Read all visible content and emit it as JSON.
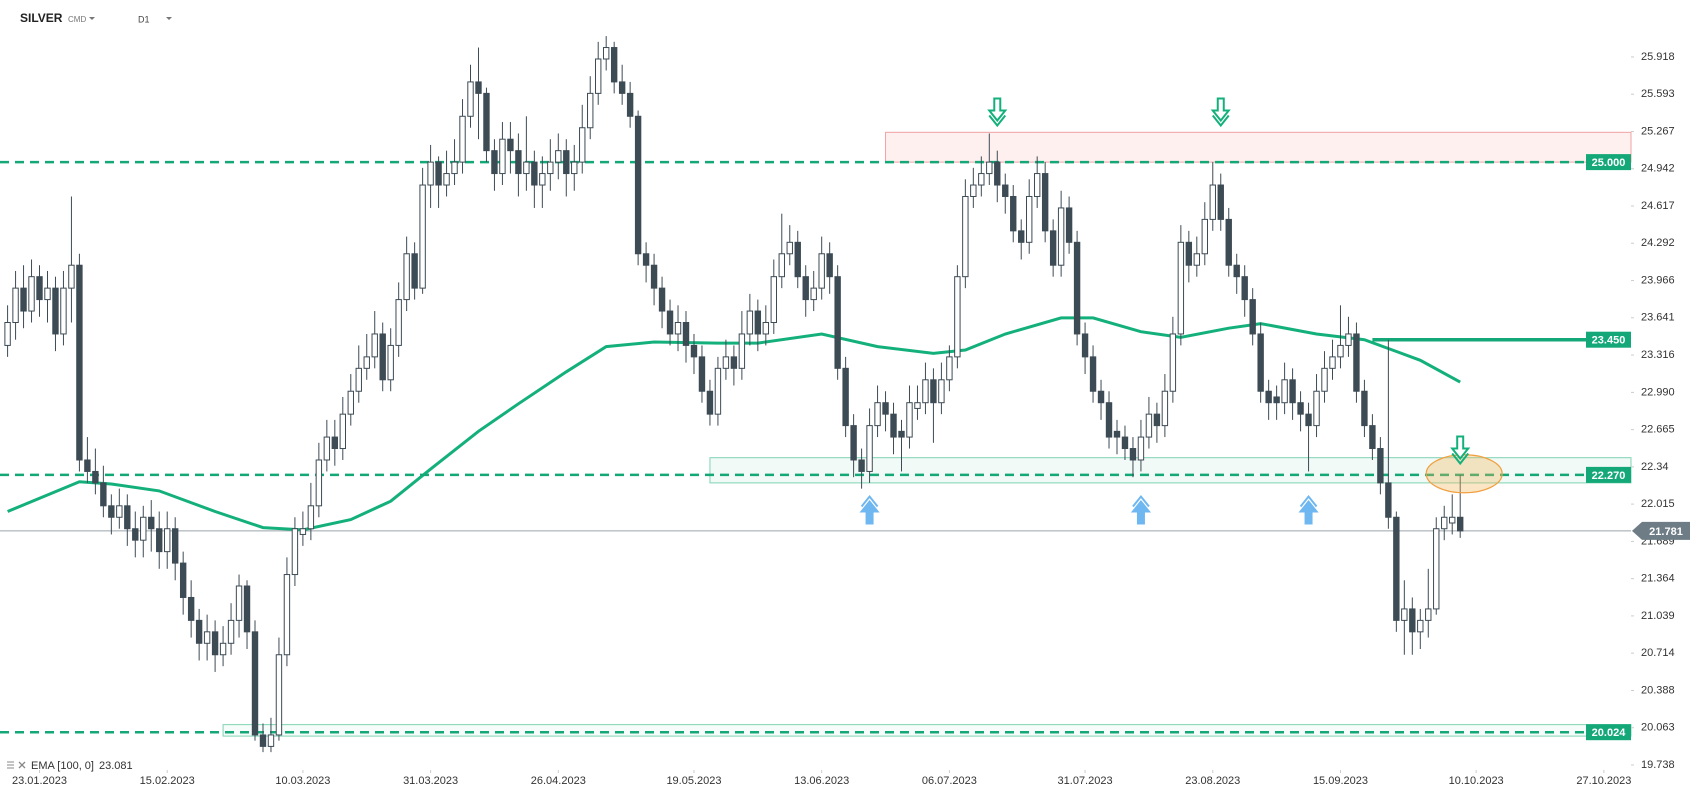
{
  "header": {
    "symbol": "SILVER",
    "market": "CMD",
    "interval": "D1"
  },
  "chart_data": {
    "type": "candlestick",
    "colors": {
      "up": "#ffffff",
      "down": "#3d4b55",
      "outline": "#3d4b55"
    },
    "open": [
      23.4,
      23.6,
      23.9,
      23.7,
      24.0,
      23.8,
      23.9,
      23.5,
      23.9,
      24.1,
      22.4,
      22.3,
      22.2,
      22.0,
      21.9,
      22.0,
      21.8,
      21.7,
      21.9,
      21.8,
      21.6,
      21.8,
      21.5,
      21.2,
      21.0,
      20.8,
      20.9,
      20.7,
      20.8,
      21.0,
      21.3,
      20.9,
      20.0,
      19.9,
      20.0,
      20.7,
      21.4,
      21.75,
      21.8,
      22.0,
      22.4,
      22.6,
      22.5,
      22.8,
      23.0,
      23.2,
      23.3,
      23.5,
      23.1,
      23.4,
      23.8,
      24.2,
      23.9,
      24.8,
      25.0,
      24.8,
      24.9,
      25.0,
      25.4,
      25.7,
      25.6,
      25.1,
      24.9,
      25.2,
      25.1,
      24.9,
      25.0,
      24.8,
      24.9,
      25.0,
      25.1,
      24.9,
      25.0,
      25.3,
      25.6,
      25.9,
      26.0,
      25.7,
      25.6,
      25.4,
      24.2,
      24.1,
      23.9,
      23.7,
      23.5,
      23.6,
      23.4,
      23.3,
      23.0,
      22.8,
      23.2,
      23.3,
      23.2,
      23.5,
      23.7,
      23.5,
      23.6,
      24.0,
      24.2,
      24.3,
      24.0,
      23.8,
      23.9,
      24.2,
      24.0,
      23.2,
      22.7,
      22.4,
      22.3,
      22.7,
      22.9,
      22.8,
      22.65,
      22.6,
      22.85,
      22.9,
      23.1,
      22.9,
      23.1,
      23.3,
      24.0,
      24.7,
      24.8,
      24.9,
      25.0,
      24.8,
      24.7,
      24.4,
      24.3,
      24.7,
      24.9,
      24.4,
      24.1,
      24.6,
      24.3,
      23.5,
      23.3,
      23.0,
      22.9,
      22.65,
      22.6,
      22.5,
      22.4,
      22.6,
      22.8,
      22.7,
      23.0,
      23.5,
      24.3,
      24.1,
      24.2,
      24.5,
      24.8,
      24.5,
      24.1,
      24.0,
      23.8,
      23.5,
      23.0,
      22.95,
      22.9,
      23.1,
      22.9,
      22.8,
      22.7,
      23.0,
      23.2,
      23.3,
      23.4,
      23.5,
      23.0,
      22.7,
      22.5,
      22.2,
      21.9,
      21.0,
      21.1,
      20.9,
      21.0,
      21.1,
      21.8,
      21.85,
      21.9
    ],
    "high": [
      23.75,
      24.05,
      24.1,
      24.15,
      24.1,
      24.05,
      24.0,
      24.05,
      24.7,
      24.2,
      22.6,
      22.5,
      22.35,
      22.1,
      22.15,
      22.1,
      21.95,
      22.0,
      22.05,
      21.95,
      21.95,
      21.9,
      21.6,
      21.35,
      21.1,
      21.05,
      21.0,
      20.95,
      21.15,
      21.4,
      21.35,
      21.0,
      20.1,
      20.15,
      20.85,
      21.55,
      21.9,
      21.95,
      22.2,
      22.55,
      22.75,
      22.75,
      22.95,
      23.15,
      23.4,
      23.5,
      23.7,
      23.6,
      23.55,
      23.95,
      24.35,
      24.3,
      24.95,
      25.15,
      25.05,
      25.1,
      25.2,
      25.55,
      25.85,
      26.0,
      25.65,
      25.2,
      25.35,
      25.35,
      25.25,
      25.4,
      25.1,
      25.05,
      25.2,
      25.25,
      25.2,
      25.15,
      25.5,
      25.75,
      26.05,
      26.1,
      26.05,
      25.85,
      25.7,
      25.45,
      24.3,
      24.2,
      24.0,
      23.8,
      23.75,
      23.7,
      23.5,
      23.4,
      23.1,
      23.3,
      23.45,
      23.4,
      23.7,
      23.85,
      23.8,
      23.75,
      24.15,
      24.55,
      24.45,
      24.4,
      24.1,
      24.05,
      24.35,
      24.3,
      24.1,
      23.3,
      22.8,
      22.5,
      22.85,
      23.05,
      23.0,
      22.9,
      22.75,
      23.05,
      23.05,
      23.25,
      23.2,
      23.25,
      23.4,
      24.1,
      24.85,
      24.95,
      25.05,
      25.25,
      25.1,
      24.9,
      24.8,
      24.5,
      24.85,
      25.05,
      25.0,
      24.5,
      24.75,
      24.7,
      24.4,
      23.6,
      23.4,
      23.1,
      23.0,
      22.75,
      22.7,
      22.6,
      22.75,
      22.95,
      22.9,
      23.15,
      23.65,
      24.45,
      24.4,
      24.35,
      24.65,
      25.0,
      24.9,
      24.6,
      24.2,
      24.1,
      23.9,
      23.6,
      23.1,
      23.05,
      23.25,
      23.2,
      23.0,
      22.9,
      23.15,
      23.35,
      23.45,
      23.75,
      23.65,
      23.6,
      23.1,
      22.8,
      22.6,
      23.45,
      21.95,
      21.35,
      21.2,
      21.1,
      21.45,
      21.9,
      22.0,
      22.1,
      22.27
    ],
    "low": [
      23.3,
      23.45,
      23.55,
      23.6,
      23.65,
      23.6,
      23.35,
      23.4,
      23.6,
      22.3,
      22.2,
      22.1,
      21.9,
      21.75,
      21.8,
      21.65,
      21.55,
      21.55,
      21.6,
      21.45,
      21.45,
      21.35,
      21.05,
      20.85,
      20.65,
      20.65,
      20.55,
      20.6,
      20.7,
      20.85,
      20.75,
      19.95,
      19.85,
      19.85,
      19.95,
      20.6,
      21.3,
      21.65,
      21.7,
      21.9,
      22.3,
      22.35,
      22.4,
      22.7,
      22.9,
      23.1,
      23.2,
      23.0,
      23.0,
      23.3,
      23.7,
      23.8,
      23.85,
      24.6,
      24.6,
      24.7,
      24.8,
      24.9,
      25.3,
      25.2,
      25.0,
      24.75,
      24.8,
      24.9,
      24.7,
      24.75,
      24.6,
      24.6,
      24.75,
      24.85,
      24.7,
      24.75,
      24.9,
      25.2,
      25.5,
      25.8,
      25.6,
      25.5,
      25.3,
      24.1,
      23.95,
      23.75,
      23.55,
      23.4,
      23.35,
      23.25,
      23.15,
      22.9,
      22.7,
      22.7,
      23.1,
      23.05,
      23.1,
      23.4,
      23.35,
      23.4,
      23.5,
      23.9,
      24.1,
      23.9,
      23.65,
      23.7,
      23.8,
      23.85,
      23.1,
      22.6,
      22.25,
      22.15,
      22.2,
      22.6,
      22.65,
      22.45,
      22.3,
      22.5,
      22.75,
      22.8,
      22.55,
      22.8,
      23.0,
      23.2,
      23.9,
      24.6,
      24.7,
      24.8,
      24.65,
      24.55,
      24.3,
      24.15,
      24.2,
      24.6,
      24.3,
      24.0,
      24.0,
      24.2,
      23.4,
      23.15,
      22.9,
      22.75,
      22.5,
      22.45,
      22.4,
      22.25,
      22.3,
      22.5,
      22.55,
      22.6,
      22.9,
      23.4,
      23.95,
      24.0,
      24.1,
      24.4,
      24.4,
      24.0,
      23.85,
      23.65,
      23.4,
      22.9,
      22.75,
      22.75,
      22.8,
      22.75,
      22.65,
      22.3,
      22.6,
      22.9,
      23.1,
      23.2,
      23.3,
      22.9,
      22.6,
      22.4,
      22.1,
      21.8,
      20.9,
      20.7,
      20.7,
      20.75,
      20.85,
      21.05,
      21.7,
      21.75,
      21.72
    ],
    "close": [
      23.6,
      23.9,
      23.7,
      24.0,
      23.8,
      23.9,
      23.5,
      23.9,
      24.1,
      22.4,
      22.3,
      22.2,
      22.0,
      21.9,
      22.0,
      21.8,
      21.7,
      21.9,
      21.8,
      21.6,
      21.8,
      21.5,
      21.2,
      21.0,
      20.8,
      20.9,
      20.7,
      20.8,
      21.0,
      21.3,
      20.9,
      20.0,
      19.9,
      20.0,
      20.7,
      21.4,
      21.8,
      21.8,
      22.0,
      22.4,
      22.6,
      22.5,
      22.8,
      23.0,
      23.2,
      23.3,
      23.5,
      23.1,
      23.4,
      23.8,
      24.2,
      23.9,
      24.8,
      25.0,
      24.8,
      24.9,
      25.0,
      25.4,
      25.7,
      25.6,
      25.1,
      24.9,
      25.2,
      25.1,
      24.9,
      25.0,
      24.8,
      24.9,
      25.0,
      25.1,
      24.9,
      25.0,
      25.3,
      25.6,
      25.9,
      26.0,
      25.7,
      25.6,
      25.4,
      24.2,
      24.1,
      23.9,
      23.7,
      23.5,
      23.6,
      23.4,
      23.3,
      23.0,
      22.8,
      23.2,
      23.3,
      23.2,
      23.5,
      23.7,
      23.5,
      23.6,
      24.0,
      24.2,
      24.3,
      24.0,
      23.8,
      23.9,
      24.2,
      24.0,
      23.2,
      22.7,
      22.4,
      22.3,
      22.7,
      22.9,
      22.8,
      22.6,
      22.6,
      22.9,
      22.9,
      23.1,
      22.9,
      23.1,
      23.3,
      24.0,
      24.7,
      24.8,
      24.9,
      25.0,
      24.8,
      24.7,
      24.4,
      24.3,
      24.7,
      24.9,
      24.4,
      24.1,
      24.6,
      24.3,
      23.5,
      23.3,
      23.0,
      22.9,
      22.6,
      22.6,
      22.5,
      22.4,
      22.6,
      22.8,
      22.7,
      23.0,
      23.5,
      24.3,
      24.1,
      24.2,
      24.5,
      24.8,
      24.5,
      24.1,
      24.0,
      23.8,
      23.5,
      23.0,
      22.9,
      22.9,
      23.1,
      22.9,
      22.8,
      22.7,
      23.0,
      23.2,
      23.3,
      23.4,
      23.5,
      23.0,
      22.7,
      22.5,
      22.2,
      21.9,
      21.0,
      21.1,
      20.9,
      21.0,
      21.1,
      21.8,
      21.9,
      21.9,
      21.781
    ],
    "ema": {
      "name": "EMA [100, 0]",
      "last": 23.081,
      "color": "#14b07c",
      "x": [
        0,
        9,
        13,
        19,
        26,
        32,
        37,
        43,
        48,
        53,
        59,
        64,
        70,
        75,
        81,
        89,
        94,
        102,
        109,
        116,
        120,
        125,
        132,
        136,
        142,
        147,
        153,
        157,
        164,
        170,
        177,
        182
      ],
      "values": [
        21.95,
        22.21,
        22.19,
        22.13,
        21.95,
        21.81,
        21.79,
        21.88,
        22.04,
        22.32,
        22.65,
        22.89,
        23.17,
        23.39,
        23.43,
        23.42,
        23.42,
        23.5,
        23.39,
        23.33,
        23.36,
        23.5,
        23.64,
        23.64,
        23.52,
        23.47,
        23.55,
        23.59,
        23.5,
        23.45,
        23.27,
        23.08
      ]
    },
    "xlim": [
      -0.95,
      203.4
    ],
    "ylim": [
      19.694,
      26.415
    ],
    "xticks": [
      {
        "value": 4,
        "label": "23.01.2023"
      },
      {
        "value": 20,
        "label": "15.02.2023"
      },
      {
        "value": 37,
        "label": "10.03.2023"
      },
      {
        "value": 53,
        "label": "31.03.2023"
      },
      {
        "value": 69,
        "label": "26.04.2023"
      },
      {
        "value": 86,
        "label": "19.05.2023"
      },
      {
        "value": 102,
        "label": "13.06.2023"
      },
      {
        "value": 118,
        "label": "06.07.2023"
      },
      {
        "value": 135,
        "label": "31.07.2023"
      },
      {
        "value": 151,
        "label": "23.08.2023"
      },
      {
        "value": 167,
        "label": "15.09.2023"
      },
      {
        "value": 184,
        "label": "10.10.2023"
      },
      {
        "value": 200,
        "label": "27.10.2023"
      }
    ],
    "yticks": [
      25.918,
      25.593,
      25.267,
      24.942,
      24.617,
      24.292,
      23.966,
      23.641,
      23.316,
      {
        "value": 22.99,
        "label": "22.990"
      },
      22.665,
      22.34,
      22.015,
      21.689,
      21.364,
      21.039,
      20.714,
      20.388,
      20.063,
      19.738
    ],
    "levels": [
      {
        "value": 25.0,
        "label": "25.000",
        "style": "dashed",
        "color": "#14a878"
      },
      {
        "value": 22.27,
        "label": "22.270",
        "style": "dashed",
        "color": "#14a878"
      },
      {
        "value": 20.024,
        "label": "20.024",
        "style": "dashed",
        "color": "#14a878"
      },
      {
        "value": 23.45,
        "label": "23.450",
        "style": "solid",
        "color": "#14a878",
        "from": 171
      }
    ],
    "last_price": {
      "value": 21.781,
      "label": "21.781",
      "color": "#6e7c86"
    },
    "zones": [
      {
        "from": 110,
        "low": 25.0,
        "high": 25.26,
        "fill": "rgba(244,67,54,0.08)",
        "stroke": "#f0a3a3"
      },
      {
        "from": 88,
        "low": 22.2,
        "high": 22.42,
        "fill": "rgba(20,168,120,0.06)",
        "stroke": "#7fd4b3"
      },
      {
        "from": 27,
        "low": 19.99,
        "high": 20.09,
        "fill": "rgba(20,168,120,0.04)",
        "stroke": "#7fd4b3"
      }
    ],
    "arrows": [
      {
        "kind": "down",
        "x": 124,
        "y": 25.45,
        "color": "#14b07c"
      },
      {
        "kind": "down",
        "x": 152,
        "y": 25.45,
        "color": "#14b07c"
      },
      {
        "kind": "down",
        "x": 182,
        "y": 22.5,
        "color": "#14b07c"
      },
      {
        "kind": "up",
        "x": 108,
        "y": 21.95,
        "color": "#6fb7f0"
      },
      {
        "kind": "up",
        "x": 142,
        "y": 21.95,
        "color": "#6fb7f0"
      },
      {
        "kind": "up",
        "x": 163,
        "y": 21.95,
        "color": "#6fb7f0"
      }
    ],
    "highlights": [
      {
        "x": 182.5,
        "y": 22.28,
        "fill": "rgba(240,180,90,0.35)",
        "stroke": "#f0a040"
      }
    ]
  }
}
